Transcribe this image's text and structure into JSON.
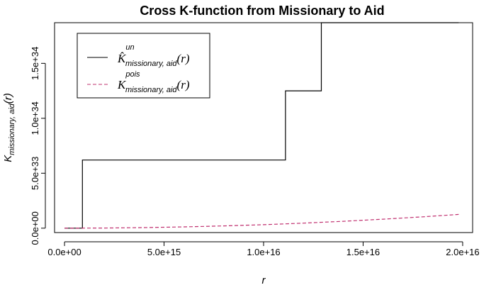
{
  "chart_data": {
    "type": "line",
    "title": "Cross K-function from Missionary to Aid",
    "xlabel": "r",
    "ylabel": {
      "base": "K",
      "subscript": "missionary, aid",
      "arg": "(r)"
    },
    "xlim": [
      -500000000000000.0,
      2.05e+16
    ],
    "ylim": [
      -4e+32,
      1.87e+34
    ],
    "x_ticks": [
      {
        "value": 0,
        "label": "0.0e+00"
      },
      {
        "value": 5000000000000000.0,
        "label": "5.0e+15"
      },
      {
        "value": 1e+16,
        "label": "1.0e+16"
      },
      {
        "value": 1.5e+16,
        "label": "1.5e+16"
      },
      {
        "value": 2e+16,
        "label": "2.0e+16"
      }
    ],
    "y_ticks": [
      {
        "value": 0,
        "label": "0.0e+00"
      },
      {
        "value": 5e+33,
        "label": "5.0e+33"
      },
      {
        "value": 1e+34,
        "label": "1.0e+34"
      },
      {
        "value": 1.5e+34,
        "label": "1.5e+34"
      }
    ],
    "series": [
      {
        "legend": {
          "base": "K̂",
          "sup": "un",
          "sub": "missionary, aid",
          "arg": "(r)"
        },
        "color": "#000000",
        "dash": "solid",
        "step": true,
        "x": [
          0,
          900000000000000.0,
          900000000000000.0,
          1.11e+16,
          1.11e+16,
          1.29e+16,
          1.29e+16,
          1.98e+16
        ],
        "y": [
          0,
          0,
          6.2e+33,
          6.2e+33,
          1.25e+34,
          1.25e+34,
          1.87e+34,
          1.87e+34
        ]
      },
      {
        "legend": {
          "base": "K",
          "sup": "pois",
          "sub": "missionary, aid",
          "arg": "(r)"
        },
        "color": "#c0306f",
        "dash": "dashed",
        "step": false,
        "x": [
          0,
          2000000000000000.0,
          4000000000000000.0,
          6000000000000000.0,
          8000000000000000.0,
          1e+16,
          1.2e+16,
          1.4e+16,
          1.6e+16,
          1.8e+16,
          1.98e+16
        ],
        "y": [
          0,
          1.3e+31,
          5.1e+31,
          1.15e+32,
          2.04e+32,
          3.19e+32,
          4.6e+32,
          6.26e+32,
          8.17e+32,
          1.034e+33,
          1.253e+33
        ]
      }
    ],
    "legend_position": "top-left",
    "grid": false
  }
}
